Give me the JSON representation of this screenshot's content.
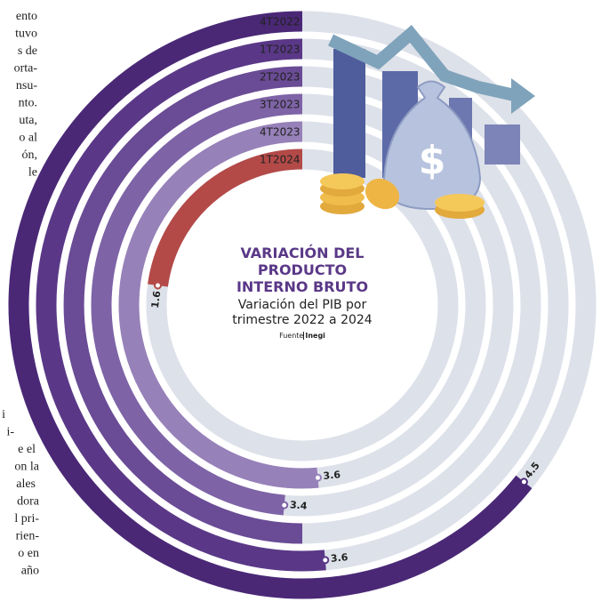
{
  "chart_data": {
    "type": "radial-bar",
    "title": "VARIACIÓN DEL PRODUCTO INTERNO BRUTO",
    "subtitle": "Variación del PIB por trimestre 2022 a 2024",
    "source_label": "Fuente",
    "source": "Inegi",
    "categories": [
      "4T2022",
      "1T2023",
      "2T2023",
      "3T2023",
      "4T2023",
      "1T2024"
    ],
    "values": [
      4.5,
      3.6,
      3.5,
      3.4,
      3.6,
      1.6
    ],
    "value_labels": [
      "4.5",
      "3.6",
      null,
      "3.4",
      "3.6",
      "1.6"
    ],
    "colors": [
      "#4a2876",
      "#5a3887",
      "#6a4b95",
      "#7e63a7",
      "#9781b9",
      "#b34a48"
    ],
    "track_color": "#dde1e9",
    "ylim": [
      0,
      7
    ]
  },
  "article_fragments": {
    "top": [
      "ento",
      "tuvo",
      "s de",
      "orta-",
      "nsu-",
      "nto.",
      "uta,",
      "o al",
      "ón,",
      "le"
    ],
    "bottom": [
      "i",
      "i-",
      "e el",
      "on la",
      "ales",
      "dora",
      "l pri-",
      "rien-",
      "o en",
      "año"
    ]
  }
}
